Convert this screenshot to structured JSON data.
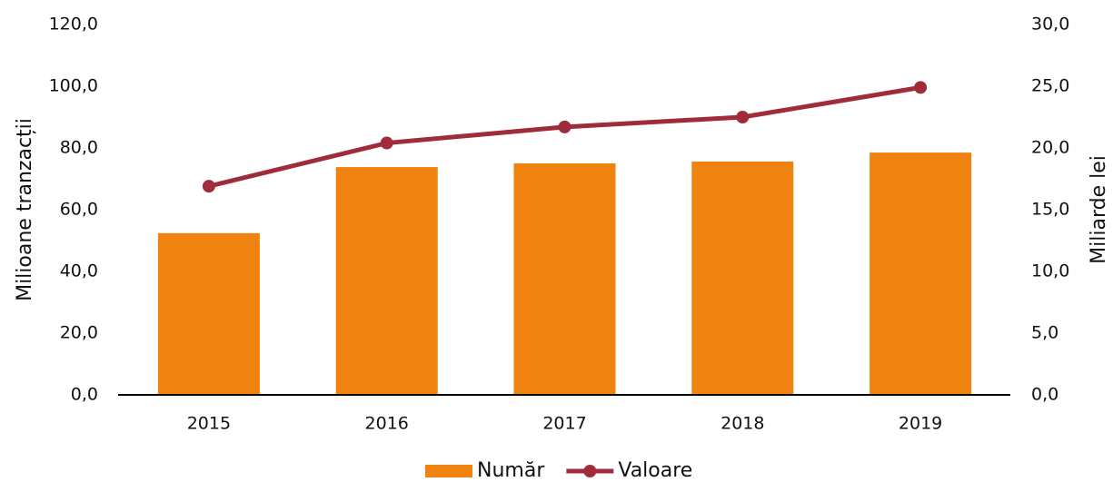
{
  "chart_data": {
    "type": "bar",
    "y_label": "Milioane tranzacții",
    "y2_label": "Miliarde lei",
    "categories": [
      "2015",
      "2016",
      "2017",
      "2018",
      "2019"
    ],
    "series": [
      {
        "name": "Număr",
        "type": "bar",
        "color": "#f0820f",
        "values": [
          52.4,
          73.8,
          75.0,
          75.6,
          78.5
        ]
      },
      {
        "name": "Valoare",
        "type": "line",
        "axis": "y2",
        "color": "#a02b3b",
        "values": [
          16.9,
          20.4,
          21.7,
          22.5,
          24.9
        ]
      }
    ],
    "ylim": [
      0,
      120
    ],
    "yticks": [
      {
        "value": 0,
        "label": "0,0"
      },
      {
        "value": 20,
        "label": "20,0"
      },
      {
        "value": 40,
        "label": "40,0"
      },
      {
        "value": 60,
        "label": "60,0"
      },
      {
        "value": 80,
        "label": "80,0"
      },
      {
        "value": 100,
        "label": "100,0"
      },
      {
        "value": 120,
        "label": "120,0"
      }
    ],
    "y2lim": [
      0,
      30
    ],
    "y2ticks": [
      {
        "value": 0,
        "label": "0,0"
      },
      {
        "value": 5,
        "label": "5,0"
      },
      {
        "value": 10,
        "label": "10,0"
      },
      {
        "value": 15,
        "label": "15,0"
      },
      {
        "value": 20,
        "label": "20,0"
      },
      {
        "value": 25,
        "label": "25,0"
      },
      {
        "value": 30,
        "label": "30,0"
      }
    ],
    "grid": false,
    "legend": "bottom"
  }
}
